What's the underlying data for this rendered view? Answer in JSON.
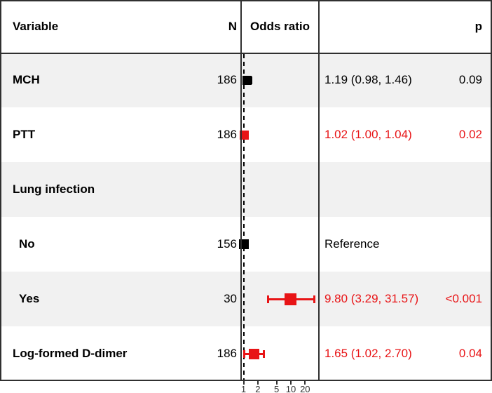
{
  "figure": {
    "header": {
      "variable": "Variable",
      "n": "N",
      "odds_ratio": "Odds ratio",
      "p": "p"
    }
  },
  "colors": {
    "red": "#e81416",
    "black": "#000000",
    "stripe": "#f1f1f1",
    "border": "#303030"
  },
  "chart_data": {
    "type": "forest",
    "x_scale": "log",
    "x_ticks": [
      1,
      2,
      5,
      10,
      20
    ],
    "x_range": [
      0.9,
      40
    ],
    "reference_line": 1,
    "columns": [
      "Variable",
      "N",
      "Odds ratio",
      "p"
    ],
    "rows": [
      {
        "label": "MCH",
        "indent": false,
        "n": "186",
        "or": 1.19,
        "ci_low": 0.98,
        "ci_high": 1.46,
        "estimate": "1.19 (0.98, 1.46)",
        "p": "0.09",
        "color": "black",
        "marker_size": 13
      },
      {
        "label": "PTT",
        "indent": false,
        "n": "186",
        "or": 1.02,
        "ci_low": 1.0,
        "ci_high": 1.04,
        "estimate": "1.02 (1.00, 1.04)",
        "p": "0.02",
        "color": "red",
        "marker_size": 13
      },
      {
        "label": "Lung infection",
        "indent": false,
        "n": "",
        "or": null,
        "ci_low": null,
        "ci_high": null,
        "estimate": "",
        "p": "",
        "color": "black",
        "marker_size": null
      },
      {
        "label": "No",
        "indent": true,
        "n": "156",
        "or": 1.0,
        "ci_low": null,
        "ci_high": null,
        "estimate": "Reference",
        "p": "",
        "color": "black",
        "marker_size": 14
      },
      {
        "label": "Yes",
        "indent": true,
        "n": "30",
        "or": 9.8,
        "ci_low": 3.29,
        "ci_high": 31.57,
        "estimate": "9.80 (3.29, 31.57)",
        "p": "<0.001",
        "color": "red",
        "marker_size": 17
      },
      {
        "label": "Log-formed D-dimer",
        "indent": false,
        "n": "186",
        "or": 1.65,
        "ci_low": 1.02,
        "ci_high": 2.7,
        "estimate": "1.65 (1.02, 2.70)",
        "p": "0.04",
        "color": "red",
        "marker_size": 15
      }
    ]
  }
}
